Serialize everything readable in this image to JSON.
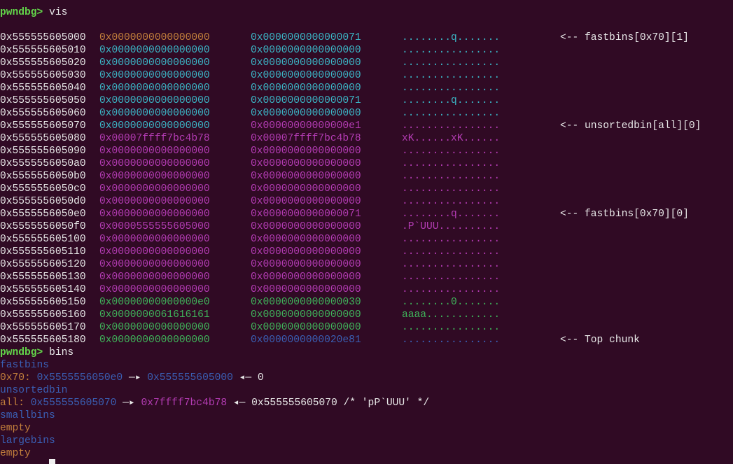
{
  "session": {
    "vis_prompt": {
      "prompt": "pwndbg>",
      "command": "vis"
    },
    "memory": [
      {
        "address": "0x555555605000",
        "word1": "0x0000000000000000",
        "word2": "0x0000000000000071",
        "ascii": "........q.......",
        "annotation": "<-- fastbins[0x70][1]",
        "colors": [
          "#c4803c",
          "#3bb6c6"
        ]
      },
      {
        "address": "0x555555605010",
        "word1": "0x0000000000000000",
        "word2": "0x0000000000000000",
        "ascii": "................",
        "colors": [
          "#3bb6c6",
          "#3bb6c6"
        ]
      },
      {
        "address": "0x555555605020",
        "word1": "0x0000000000000000",
        "word2": "0x0000000000000000",
        "ascii": "................",
        "colors": [
          "#3bb6c6",
          "#3bb6c6"
        ]
      },
      {
        "address": "0x555555605030",
        "word1": "0x0000000000000000",
        "word2": "0x0000000000000000",
        "ascii": "................",
        "colors": [
          "#3bb6c6",
          "#3bb6c6"
        ]
      },
      {
        "address": "0x555555605040",
        "word1": "0x0000000000000000",
        "word2": "0x0000000000000000",
        "ascii": "................",
        "colors": [
          "#3bb6c6",
          "#3bb6c6"
        ]
      },
      {
        "address": "0x555555605050",
        "word1": "0x0000000000000000",
        "word2": "0x0000000000000071",
        "ascii": "........q.......",
        "colors": [
          "#3bb6c6",
          "#3bb6c6"
        ]
      },
      {
        "address": "0x555555605060",
        "word1": "0x0000000000000000",
        "word2": "0x0000000000000000",
        "ascii": "................",
        "colors": [
          "#3bb6c6",
          "#3bb6c6"
        ]
      },
      {
        "address": "0x555555605070",
        "word1": "0x0000000000000000",
        "word2": "0x00000000000000e1",
        "ascii": "................",
        "annotation": "<-- unsortedbin[all][0]",
        "colors": [
          "#3bb6c6",
          "#b43cb4"
        ]
      },
      {
        "address": "0x555555605080",
        "word1": "0x00007ffff7bc4b78",
        "word2": "0x00007ffff7bc4b78",
        "ascii": "xK......xK......",
        "colors": [
          "#b43cb4",
          "#b43cb4"
        ]
      },
      {
        "address": "0x555555605090",
        "word1": "0x0000000000000000",
        "word2": "0x0000000000000000",
        "ascii": "................",
        "colors": [
          "#b43cb4",
          "#b43cb4"
        ]
      },
      {
        "address": "0x5555556050a0",
        "word1": "0x0000000000000000",
        "word2": "0x0000000000000000",
        "ascii": "................",
        "colors": [
          "#b43cb4",
          "#b43cb4"
        ]
      },
      {
        "address": "0x5555556050b0",
        "word1": "0x0000000000000000",
        "word2": "0x0000000000000000",
        "ascii": "................",
        "colors": [
          "#b43cb4",
          "#b43cb4"
        ]
      },
      {
        "address": "0x5555556050c0",
        "word1": "0x0000000000000000",
        "word2": "0x0000000000000000",
        "ascii": "................",
        "colors": [
          "#b43cb4",
          "#b43cb4"
        ]
      },
      {
        "address": "0x5555556050d0",
        "word1": "0x0000000000000000",
        "word2": "0x0000000000000000",
        "ascii": "................",
        "colors": [
          "#b43cb4",
          "#b43cb4"
        ]
      },
      {
        "address": "0x5555556050e0",
        "word1": "0x0000000000000000",
        "word2": "0x0000000000000071",
        "ascii": "........q.......",
        "annotation": "<-- fastbins[0x70][0]",
        "colors": [
          "#b43cb4",
          "#b43cb4"
        ]
      },
      {
        "address": "0x5555556050f0",
        "word1": "0x0000555555605000",
        "word2": "0x0000000000000000",
        "ascii": ".P`UUU..........",
        "colors": [
          "#b43cb4",
          "#b43cb4"
        ]
      },
      {
        "address": "0x555555605100",
        "word1": "0x0000000000000000",
        "word2": "0x0000000000000000",
        "ascii": "................",
        "colors": [
          "#b43cb4",
          "#b43cb4"
        ]
      },
      {
        "address": "0x555555605110",
        "word1": "0x0000000000000000",
        "word2": "0x0000000000000000",
        "ascii": "................",
        "colors": [
          "#b43cb4",
          "#b43cb4"
        ]
      },
      {
        "address": "0x555555605120",
        "word1": "0x0000000000000000",
        "word2": "0x0000000000000000",
        "ascii": "................",
        "colors": [
          "#b43cb4",
          "#b43cb4"
        ]
      },
      {
        "address": "0x555555605130",
        "word1": "0x0000000000000000",
        "word2": "0x0000000000000000",
        "ascii": "................",
        "colors": [
          "#b43cb4",
          "#b43cb4"
        ]
      },
      {
        "address": "0x555555605140",
        "word1": "0x0000000000000000",
        "word2": "0x0000000000000000",
        "ascii": "................",
        "colors": [
          "#b43cb4",
          "#b43cb4"
        ]
      },
      {
        "address": "0x555555605150",
        "word1": "0x00000000000000e0",
        "word2": "0x0000000000000030",
        "ascii": "........0.......",
        "colors": [
          "#3fb45a",
          "#3fb45a"
        ]
      },
      {
        "address": "0x555555605160",
        "word1": "0x0000000061616161",
        "word2": "0x0000000000000000",
        "ascii": "aaaa............",
        "colors": [
          "#3fb45a",
          "#3fb45a"
        ]
      },
      {
        "address": "0x555555605170",
        "word1": "0x0000000000000000",
        "word2": "0x0000000000000000",
        "ascii": "................",
        "colors": [
          "#3fb45a",
          "#3fb45a"
        ]
      },
      {
        "address": "0x555555605180",
        "word1": "0x0000000000000000",
        "word2": "0x0000000000020e81",
        "ascii": "................",
        "annotation": "<-- Top chunk",
        "colors": [
          "#3fb45a",
          "#3a5fb4"
        ]
      }
    ],
    "bins_prompt": {
      "prompt": "pwndbg>",
      "command": "bins"
    },
    "bins": [
      {
        "segments": [
          {
            "text": "fastbins",
            "color": "#3a5fb4"
          }
        ]
      },
      {
        "segments": [
          {
            "text": "0x70:",
            "color": "#c4803c"
          },
          {
            "text": "0x5555556050e0",
            "color": "#3a5fb4"
          },
          {
            "text": "—▸",
            "color": "#e8e8e8"
          },
          {
            "text": "0x555555605000",
            "color": "#3a5fb4"
          },
          {
            "text": "◂— 0",
            "color": "#e8e8e8"
          }
        ]
      },
      {
        "segments": [
          {
            "text": "unsortedbin",
            "color": "#3a5fb4"
          }
        ]
      },
      {
        "segments": [
          {
            "text": "all:",
            "color": "#c4803c"
          },
          {
            "text": "0x555555605070",
            "color": "#3a5fb4"
          },
          {
            "text": "—▸",
            "color": "#e8e8e8"
          },
          {
            "text": "0x7ffff7bc4b78",
            "color": "#b43cb4"
          },
          {
            "text": "◂— 0x555555605070 /* 'pP`UUU' */",
            "color": "#e8e8e8"
          }
        ]
      },
      {
        "segments": [
          {
            "text": "smallbins",
            "color": "#3a5fb4"
          }
        ]
      },
      {
        "segments": [
          {
            "text": "empty",
            "color": "#c4803c"
          }
        ]
      },
      {
        "segments": [
          {
            "text": "largebins",
            "color": "#3a5fb4"
          }
        ]
      },
      {
        "segments": [
          {
            "text": "empty",
            "color": "#c4803c"
          }
        ]
      }
    ],
    "final_prompt": "pwndbg>"
  }
}
